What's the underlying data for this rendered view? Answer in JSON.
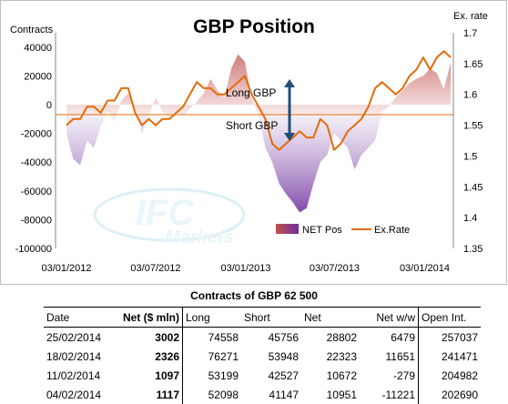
{
  "chart_data": {
    "type": "area",
    "title": "GBP Position",
    "ylabel_left": "Contracts",
    "ylabel_right": "Ex. rate",
    "ylim_left": [
      -100000,
      50000
    ],
    "ylim_right": [
      1.35,
      1.7
    ],
    "yticks_left": [
      "40000",
      "20000",
      "0",
      "-20000",
      "-40000",
      "-60000",
      "-80000",
      "-100000"
    ],
    "yticks_right": [
      "1.7",
      "1.65",
      "1.6",
      "1.55",
      "1.5",
      "1.45",
      "1.4",
      "1.35"
    ],
    "xticks": [
      "03/01/2012",
      "03/07/2012",
      "03/01/2013",
      "03/07/2013",
      "03/01/2014"
    ],
    "x": [
      "2012-01-03",
      "2012-01-17",
      "2012-01-31",
      "2012-02-14",
      "2012-02-28",
      "2012-03-13",
      "2012-03-27",
      "2012-04-10",
      "2012-04-24",
      "2012-05-08",
      "2012-05-22",
      "2012-06-05",
      "2012-06-19",
      "2012-07-03",
      "2012-07-17",
      "2012-07-31",
      "2012-08-14",
      "2012-08-28",
      "2012-09-11",
      "2012-09-25",
      "2012-10-09",
      "2012-10-23",
      "2012-11-06",
      "2012-11-20",
      "2012-12-04",
      "2012-12-18",
      "2013-01-01",
      "2013-01-15",
      "2013-01-29",
      "2013-02-12",
      "2013-02-26",
      "2013-03-12",
      "2013-03-26",
      "2013-04-09",
      "2013-04-23",
      "2013-05-07",
      "2013-05-21",
      "2013-06-04",
      "2013-06-18",
      "2013-07-02",
      "2013-07-16",
      "2013-07-30",
      "2013-08-13",
      "2013-08-27",
      "2013-09-10",
      "2013-09-24",
      "2013-10-08",
      "2013-10-22",
      "2013-11-05",
      "2013-11-19",
      "2013-12-03",
      "2013-12-17",
      "2013-12-31",
      "2014-01-14",
      "2014-01-28",
      "2014-02-11",
      "2014-02-25"
    ],
    "series": [
      {
        "name": "NET Pos",
        "values": [
          -20000,
          -38000,
          -42000,
          -25000,
          -30000,
          -15000,
          -5000,
          -12000,
          3000,
          8000,
          -3000,
          -20000,
          -8000,
          5000,
          -5000,
          -10000,
          -5000,
          -8000,
          -3000,
          2000,
          8000,
          18000,
          10000,
          5000,
          25000,
          35000,
          30000,
          5000,
          -8000,
          -30000,
          -40000,
          -55000,
          -62000,
          -68000,
          -75000,
          -72000,
          -55000,
          -40000,
          -35000,
          -20000,
          -25000,
          -30000,
          -45000,
          -35000,
          -30000,
          -25000,
          -5000,
          -1000,
          5000,
          10000,
          15000,
          18000,
          20000,
          25000,
          22000,
          10672,
          28802
        ]
      },
      {
        "name": "Ex.Rate",
        "values": [
          1.55,
          1.56,
          1.56,
          1.58,
          1.58,
          1.57,
          1.59,
          1.59,
          1.61,
          1.61,
          1.57,
          1.55,
          1.56,
          1.55,
          1.56,
          1.56,
          1.57,
          1.58,
          1.6,
          1.62,
          1.61,
          1.61,
          1.6,
          1.6,
          1.61,
          1.62,
          1.63,
          1.6,
          1.58,
          1.56,
          1.52,
          1.51,
          1.52,
          1.53,
          1.54,
          1.53,
          1.53,
          1.56,
          1.55,
          1.51,
          1.52,
          1.54,
          1.55,
          1.56,
          1.58,
          1.61,
          1.62,
          1.61,
          1.6,
          1.61,
          1.63,
          1.64,
          1.66,
          1.64,
          1.66,
          1.67,
          1.66
        ]
      }
    ],
    "annotations": [
      "Long GBP",
      "Short GBP"
    ],
    "legend_position": "bottom-right"
  },
  "watermark": {
    "line1": "IFC",
    "line2": "Markets"
  },
  "table": {
    "title": "Contracts of GBP 62 500",
    "headers": [
      "Date",
      "Net ($ mln)",
      "Long",
      "Short",
      "Net",
      "Net w/w",
      "Open Int."
    ],
    "rows": [
      [
        "25/02/2014",
        "3002",
        "74558",
        "45756",
        "28802",
        "6479",
        "257037"
      ],
      [
        "18/02/2014",
        "2326",
        "76271",
        "53948",
        "22323",
        "11651",
        "241471"
      ],
      [
        "11/02/2014",
        "1097",
        "53199",
        "42527",
        "10672",
        "-279",
        "204982"
      ],
      [
        "04/02/2014",
        "1117",
        "52098",
        "41147",
        "10951",
        "-11221",
        "202690"
      ]
    ]
  },
  "colors": {
    "net_pos_positive": "#c0504d",
    "net_pos_negative": "#7030a0",
    "ex_rate": "#e36c09",
    "arrow": "#1f4e79"
  }
}
